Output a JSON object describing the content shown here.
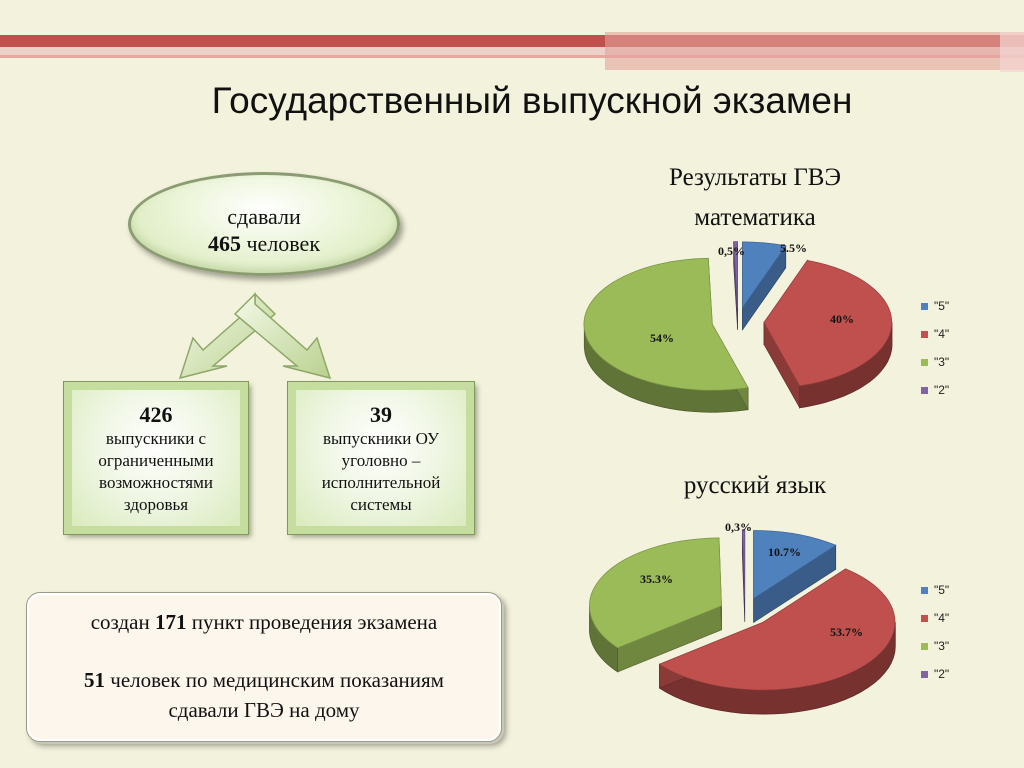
{
  "title": "Государственный выпускной экзамен",
  "total": {
    "line1": "сдавали",
    "number": "465",
    "unit": "человек"
  },
  "boxes": [
    {
      "number": "426",
      "text": "выпускники с ограниченными возможностями здоровья"
    },
    {
      "number": "39",
      "text": "выпускники ОУ уголовно – исполнительной системы"
    }
  ],
  "info": {
    "line1_prefix": "создан",
    "line1_number": "171",
    "line1_suffix": "пункт проведения экзамена",
    "line2_number": "51",
    "line2_text": "человек по медицинским показаниям",
    "line3_text": "сдавали ГВЭ на дому"
  },
  "colors": {
    "5": "#4f81bd",
    "4": "#c0504d",
    "3": "#9bbb59",
    "2": "#8064a2",
    "stripe": "#c0504d"
  },
  "chart_data": [
    {
      "type": "pie",
      "title": "Результаты ГВЭ математика",
      "title_line1": "Результаты ГВЭ",
      "title_line2": "математика",
      "legend": [
        "\"5\"",
        "\"4\"",
        "\"3\"",
        "\"2\""
      ],
      "legend_position": "right",
      "values": [
        5.5,
        40,
        54,
        0.5
      ],
      "labels": [
        "5.5%",
        "40%",
        "54%",
        "0,5%"
      ]
    },
    {
      "type": "pie",
      "title": "русский язык",
      "legend": [
        "\"5\"",
        "\"4\"",
        "\"3\"",
        "\"2\""
      ],
      "legend_position": "right",
      "values": [
        10.7,
        53.7,
        35.3,
        0.3
      ],
      "labels": [
        "10.7%",
        "53.7%",
        "35.3%",
        "0,3%"
      ]
    }
  ]
}
